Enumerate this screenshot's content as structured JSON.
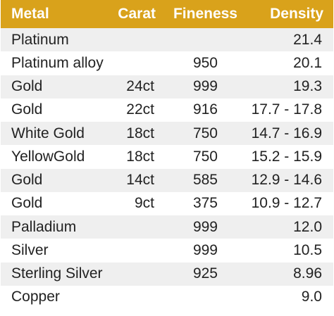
{
  "header": {
    "metal": "Metal",
    "carat": "Carat",
    "fineness": "Fineness",
    "density": "Density"
  },
  "rows": [
    {
      "metal": "Platinum",
      "carat": "",
      "fineness": "",
      "density": "21.4"
    },
    {
      "metal": "Platinum alloy",
      "carat": "",
      "fineness": "950",
      "density": "20.1"
    },
    {
      "metal": "Gold",
      "carat": "24ct",
      "fineness": "999",
      "density": "19.3"
    },
    {
      "metal": "Gold",
      "carat": "22ct",
      "fineness": "916",
      "density": "17.7 - 17.8"
    },
    {
      "metal": "White Gold",
      "carat": "18ct",
      "fineness": "750",
      "density": "14.7 - 16.9"
    },
    {
      "metal": "YellowGold",
      "carat": "18ct",
      "fineness": "750",
      "density": "15.2 - 15.9"
    },
    {
      "metal": "Gold",
      "carat": "14ct",
      "fineness": "585",
      "density": "12.9 - 14.6"
    },
    {
      "metal": "Gold",
      "carat": "9ct",
      "fineness": "375",
      "density": "10.9 - 12.7"
    },
    {
      "metal": "Palladium",
      "carat": "",
      "fineness": "999",
      "density": "12.0"
    },
    {
      "metal": "Silver",
      "carat": "",
      "fineness": "999",
      "density": "10.5"
    },
    {
      "metal": "Sterling Silver",
      "carat": "",
      "fineness": "925",
      "density": "8.96"
    },
    {
      "metal": "Copper",
      "carat": "",
      "fineness": "",
      "density": "9.0"
    }
  ],
  "colors": {
    "header_bg": "#d9a21b",
    "header_text": "#ffffff",
    "row_alt_bg": "#efefef",
    "row_text": "#222222"
  }
}
